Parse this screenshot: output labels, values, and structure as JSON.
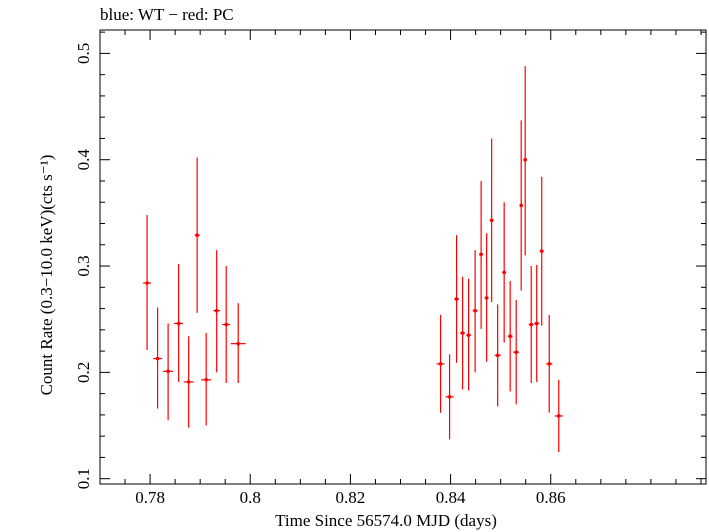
{
  "chart_data": {
    "type": "scatter",
    "annotation": "blue: WT − red: PC",
    "xlabel": "Time Since 56574.0 MJD (days)",
    "ylabel": "Count Rate (0.3−10.0 keV)(cts s⁻¹)",
    "xlim": [
      0.77,
      0.891
    ],
    "ylim": [
      0.095,
      0.522
    ],
    "x_ticks": [
      0.78,
      0.8,
      0.82,
      0.84,
      0.86
    ],
    "x_tick_labels": [
      "0.78",
      "0.8",
      "0.82",
      "0.84",
      "0.86"
    ],
    "y_ticks": [
      0.1,
      0.2,
      0.3,
      0.4,
      0.5
    ],
    "y_tick_labels": [
      "0.1",
      "0.2",
      "0.3",
      "0.4",
      "0.5"
    ],
    "grid": false,
    "series": [
      {
        "color": "#ff0000",
        "points": [
          {
            "x": 0.7794,
            "y": 0.284,
            "xerr": 0.0008,
            "ylo": 0.221,
            "yhi": 0.348
          },
          {
            "x": 0.7815,
            "y": 0.213,
            "xerr": 0.0009,
            "ylo": 0.166,
            "yhi": 0.261
          },
          {
            "x": 0.7836,
            "y": 0.201,
            "xerr": 0.001,
            "ylo": 0.155,
            "yhi": 0.246
          },
          {
            "x": 0.7857,
            "y": 0.246,
            "xerr": 0.0009,
            "ylo": 0.191,
            "yhi": 0.302
          },
          {
            "x": 0.7877,
            "y": 0.191,
            "xerr": 0.001,
            "ylo": 0.148,
            "yhi": 0.234
          },
          {
            "x": 0.7894,
            "y": 0.329,
            "xerr": 0.0005,
            "ylo": 0.256,
            "yhi": 0.402
          },
          {
            "x": 0.7912,
            "y": 0.193,
            "xerr": 0.001,
            "ylo": 0.15,
            "yhi": 0.237
          },
          {
            "x": 0.7933,
            "y": 0.258,
            "xerr": 0.0007,
            "ylo": 0.2,
            "yhi": 0.315
          },
          {
            "x": 0.7952,
            "y": 0.245,
            "xerr": 0.0008,
            "ylo": 0.19,
            "yhi": 0.3
          },
          {
            "x": 0.7976,
            "y": 0.227,
            "xerr": 0.0015,
            "ylo": 0.19,
            "yhi": 0.265
          },
          {
            "x": 0.838,
            "y": 0.208,
            "xerr": 0.0008,
            "ylo": 0.162,
            "yhi": 0.254
          },
          {
            "x": 0.8398,
            "y": 0.177,
            "xerr": 0.0008,
            "ylo": 0.137,
            "yhi": 0.217
          },
          {
            "x": 0.8412,
            "y": 0.269,
            "xerr": 0.0005,
            "ylo": 0.209,
            "yhi": 0.329
          },
          {
            "x": 0.8424,
            "y": 0.237,
            "xerr": 0.0005,
            "ylo": 0.184,
            "yhi": 0.29
          },
          {
            "x": 0.8436,
            "y": 0.235,
            "xerr": 0.0005,
            "ylo": 0.183,
            "yhi": 0.288
          },
          {
            "x": 0.8449,
            "y": 0.258,
            "xerr": 0.0005,
            "ylo": 0.2,
            "yhi": 0.315
          },
          {
            "x": 0.8461,
            "y": 0.311,
            "xerr": 0.0004,
            "ylo": 0.241,
            "yhi": 0.38
          },
          {
            "x": 0.8472,
            "y": 0.27,
            "xerr": 0.0004,
            "ylo": 0.21,
            "yhi": 0.331
          },
          {
            "x": 0.8482,
            "y": 0.343,
            "xerr": 0.0004,
            "ylo": 0.266,
            "yhi": 0.42
          },
          {
            "x": 0.8494,
            "y": 0.216,
            "xerr": 0.0006,
            "ylo": 0.168,
            "yhi": 0.264
          },
          {
            "x": 0.8507,
            "y": 0.294,
            "xerr": 0.0004,
            "ylo": 0.228,
            "yhi": 0.36
          },
          {
            "x": 0.8519,
            "y": 0.234,
            "xerr": 0.0005,
            "ylo": 0.182,
            "yhi": 0.286
          },
          {
            "x": 0.8531,
            "y": 0.219,
            "xerr": 0.0006,
            "ylo": 0.17,
            "yhi": 0.268
          },
          {
            "x": 0.8541,
            "y": 0.357,
            "xerr": 0.0003,
            "ylo": 0.277,
            "yhi": 0.437
          },
          {
            "x": 0.8549,
            "y": 0.4,
            "xerr": 0.0003,
            "ylo": 0.31,
            "yhi": 0.488
          },
          {
            "x": 0.8561,
            "y": 0.245,
            "xerr": 0.0005,
            "ylo": 0.19,
            "yhi": 0.3
          },
          {
            "x": 0.8572,
            "y": 0.246,
            "xerr": 0.0005,
            "ylo": 0.191,
            "yhi": 0.301
          },
          {
            "x": 0.8582,
            "y": 0.314,
            "xerr": 0.0004,
            "ylo": 0.244,
            "yhi": 0.384
          },
          {
            "x": 0.8597,
            "y": 0.208,
            "xerr": 0.0006,
            "ylo": 0.162,
            "yhi": 0.254
          },
          {
            "x": 0.8616,
            "y": 0.159,
            "xerr": 0.0008,
            "ylo": 0.125,
            "yhi": 0.193
          }
        ]
      }
    ]
  }
}
